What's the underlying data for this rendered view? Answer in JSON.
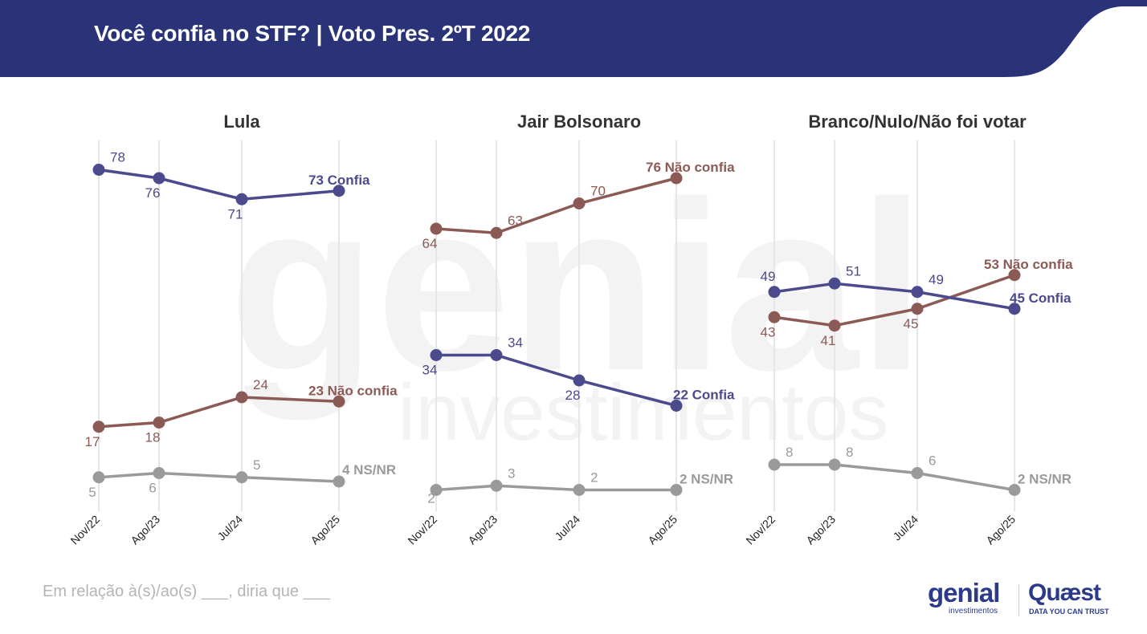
{
  "header": {
    "title": "Você confia no STF? | Voto Pres. 2ºT 2022"
  },
  "colors": {
    "header_bg": "#2a3378",
    "confia": "#4a4a8c",
    "nao_confia": "#8c5a55",
    "ns_nr": "#9a9a9a",
    "gridline": "#e6e6e6"
  },
  "chart_data": [
    {
      "type": "line",
      "title": "Lula",
      "categories": [
        "Nov/22",
        "Ago/23",
        "Jul/24",
        "Ago/25"
      ],
      "series": [
        {
          "key": "confia",
          "name": "Confia",
          "values": [
            78,
            76,
            71,
            73
          ],
          "end_label": "73 Confia"
        },
        {
          "key": "nao_confia",
          "name": "Não confia",
          "values": [
            17,
            18,
            24,
            23
          ],
          "end_label": "23 Não confia"
        },
        {
          "key": "ns_nr",
          "name": "NS/NR",
          "values": [
            5,
            6,
            5,
            4
          ],
          "end_label": "4 NS/NR"
        }
      ],
      "xlabel": "",
      "ylabel": "",
      "ylim": [
        0,
        100
      ],
      "grid": "vertical",
      "legend": "none"
    },
    {
      "type": "line",
      "title": "Jair Bolsonaro",
      "categories": [
        "Nov/22",
        "Ago/23",
        "Jul/24",
        "Ago/25"
      ],
      "series": [
        {
          "key": "nao_confia",
          "name": "Não confia",
          "values": [
            64,
            63,
            70,
            76
          ],
          "end_label": "76 Não confia"
        },
        {
          "key": "confia",
          "name": "Confia",
          "values": [
            34,
            34,
            28,
            22
          ],
          "end_label": "22 Confia"
        },
        {
          "key": "ns_nr",
          "name": "NS/NR",
          "values": [
            2,
            3,
            2,
            2
          ],
          "end_label": "2 NS/NR"
        }
      ],
      "xlabel": "",
      "ylabel": "",
      "ylim": [
        0,
        100
      ],
      "grid": "vertical",
      "legend": "none"
    },
    {
      "type": "line",
      "title": "Branco/Nulo/Não foi votar",
      "categories": [
        "Nov/22",
        "Ago/23",
        "Jul/24",
        "Ago/25"
      ],
      "series": [
        {
          "key": "nao_confia",
          "name": "Não confia",
          "values": [
            43,
            41,
            45,
            53
          ],
          "end_label": "53 Não confia"
        },
        {
          "key": "confia",
          "name": "Confia",
          "values": [
            49,
            51,
            49,
            45
          ],
          "end_label": "45 Confia"
        },
        {
          "key": "ns_nr",
          "name": "NS/NR",
          "values": [
            8,
            8,
            6,
            2
          ],
          "end_label": "2 NS/NR"
        }
      ],
      "xlabel": "",
      "ylabel": "",
      "ylim": [
        0,
        100
      ],
      "grid": "vertical",
      "legend": "none"
    }
  ],
  "watermark": {
    "main": "genial",
    "sub": "investimentos"
  },
  "footnote": "Em relação à(s)/ao(s) ___, diria que ___",
  "logos": {
    "genial": "genial",
    "genial_sub": "investimentos",
    "quaest": "Quæst",
    "quaest_sub": "DATA YOU CAN TRUST"
  }
}
